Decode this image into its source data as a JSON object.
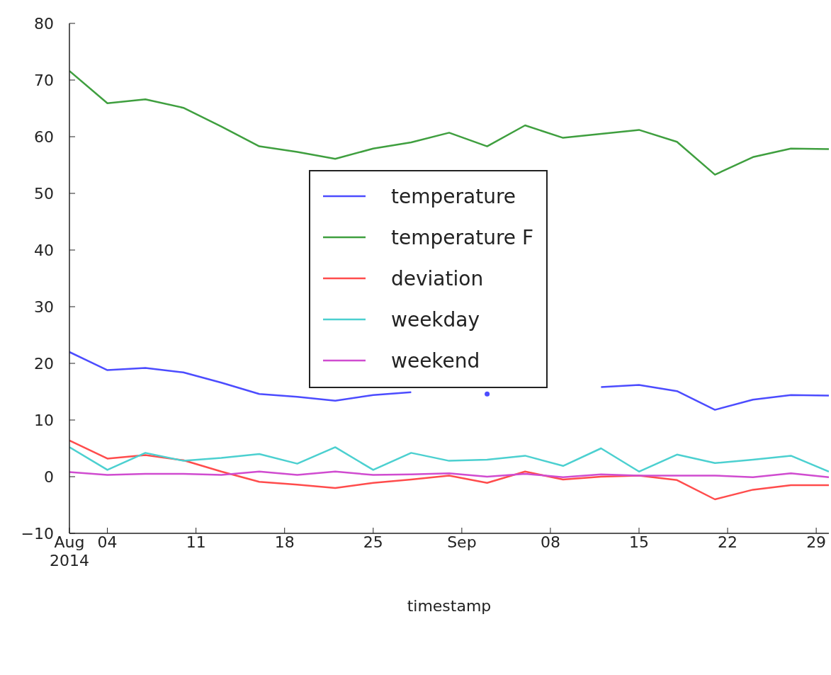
{
  "chart_data": {
    "type": "line",
    "xlabel": "timestamp",
    "x": [
      "2014-08-01",
      "2014-08-04",
      "2014-08-07",
      "2014-08-10",
      "2014-08-13",
      "2014-08-16",
      "2014-08-19",
      "2014-08-22",
      "2014-08-25",
      "2014-08-28",
      "2014-08-31",
      "2014-09-03",
      "2014-09-06",
      "2014-09-09",
      "2014-09-12",
      "2014-09-15",
      "2014-09-18",
      "2014-09-21",
      "2014-09-24",
      "2014-09-27",
      "2014-09-30"
    ],
    "series": [
      {
        "name": "temperature",
        "color": "#4c4cff",
        "values": [
          22.0,
          18.8,
          19.2,
          18.4,
          16.6,
          14.6,
          14.1,
          13.4,
          14.4,
          14.9,
          null,
          14.6,
          null,
          null,
          15.8,
          16.2,
          15.1,
          11.8,
          13.6,
          14.4,
          14.3
        ]
      },
      {
        "name": "temperature F",
        "color": "#3f9f3f",
        "values": [
          71.6,
          65.9,
          66.6,
          65.1,
          61.8,
          58.3,
          57.3,
          56.1,
          57.9,
          59.0,
          60.7,
          58.3,
          62.0,
          59.8,
          60.5,
          61.2,
          59.1,
          53.3,
          56.4,
          57.9,
          57.8
        ]
      },
      {
        "name": "deviation",
        "color": "#ff4c4c",
        "values": [
          6.4,
          3.2,
          3.8,
          2.9,
          0.9,
          -0.9,
          -1.4,
          -2.0,
          -1.1,
          -0.5,
          0.2,
          -1.1,
          0.9,
          -0.5,
          0.0,
          0.2,
          -0.6,
          -4.0,
          -2.3,
          -1.5,
          -1.5
        ]
      },
      {
        "name": "weekday",
        "color": "#4cd0d0",
        "values": [
          5.2,
          1.2,
          4.2,
          2.8,
          3.3,
          4.0,
          2.3,
          5.2,
          1.2,
          4.2,
          2.8,
          3.0,
          3.7,
          1.9,
          5.0,
          0.9,
          3.9,
          2.4,
          3.0,
          3.7,
          0.9
        ]
      },
      {
        "name": "weekend",
        "color": "#d04cd0",
        "values": [
          0.8,
          0.3,
          0.5,
          0.5,
          0.3,
          0.9,
          0.3,
          0.9,
          0.3,
          0.4,
          0.6,
          0.0,
          0.5,
          -0.1,
          0.4,
          0.2,
          0.2,
          0.2,
          -0.1,
          0.6,
          -0.1
        ]
      }
    ],
    "xlim": [
      "2014-08-01",
      "2014-09-30"
    ],
    "xticks": [
      {
        "value": "2014-08-01",
        "label": "Aug\n2014"
      },
      {
        "value": "2014-08-04",
        "label": "04"
      },
      {
        "value": "2014-08-11",
        "label": "11"
      },
      {
        "value": "2014-08-18",
        "label": "18"
      },
      {
        "value": "2014-08-25",
        "label": "25"
      },
      {
        "value": "2014-09-01",
        "label": "Sep"
      },
      {
        "value": "2014-09-08",
        "label": "08"
      },
      {
        "value": "2014-09-15",
        "label": "15"
      },
      {
        "value": "2014-09-22",
        "label": "22"
      },
      {
        "value": "2014-09-29",
        "label": "29"
      }
    ],
    "ylim": [
      -10,
      80
    ],
    "yticks": [
      {
        "value": -10,
        "label": "−10"
      },
      0,
      10,
      20,
      30,
      40,
      50,
      60,
      70,
      80
    ],
    "legend": "center",
    "line_style": "solid"
  }
}
